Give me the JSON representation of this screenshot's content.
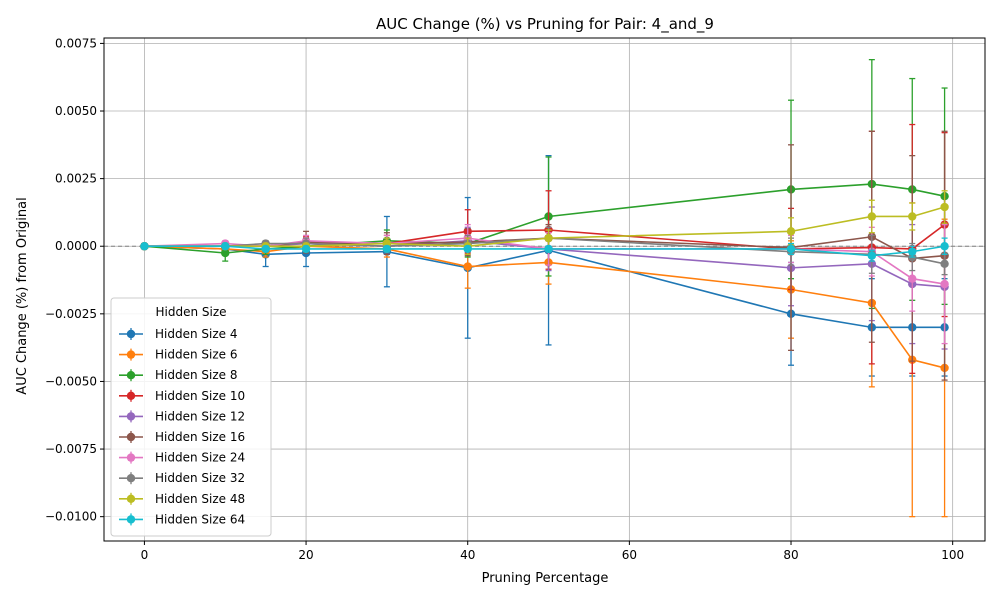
{
  "chart_data": {
    "type": "line",
    "title": "AUC Change (%) vs Pruning for Pair: 4_and_9",
    "xlabel": "Pruning Percentage",
    "ylabel": "AUC Change (%) from Original",
    "xlim": [
      -5,
      104
    ],
    "ylim": [
      -0.0109,
      0.0077
    ],
    "xticks": [
      0,
      20,
      40,
      60,
      80,
      100
    ],
    "xtick_labels": [
      "0",
      "20",
      "40",
      "60",
      "80",
      "100"
    ],
    "yticks": [
      -0.01,
      -0.0075,
      -0.005,
      -0.0025,
      0.0,
      0.0025,
      0.005,
      0.0075
    ],
    "ytick_labels": [
      "−0.0100",
      "−0.0075",
      "−0.0050",
      "−0.0025",
      "0.0000",
      "0.0025",
      "0.0050",
      "0.0075"
    ],
    "grid": true,
    "reference_line": 0.0,
    "legend_title": "Hidden Size",
    "legend_position": "lower-left",
    "x": [
      0,
      10,
      15,
      20,
      30,
      40,
      50,
      80,
      90,
      95,
      99
    ],
    "series": [
      {
        "name": "Hidden Size 4",
        "color": "#1f77b4",
        "values": [
          0.0,
          -0.0001,
          -0.0003,
          -0.00025,
          -0.0002,
          -0.0008,
          -0.00015,
          -0.0025,
          -0.003,
          -0.003,
          -0.003
        ],
        "errors": [
          0.0,
          0.0002,
          0.00045,
          0.0005,
          0.0013,
          0.0026,
          0.0035,
          0.0019,
          0.0018,
          0.0018,
          0.0018
        ]
      },
      {
        "name": "Hidden Size 6",
        "color": "#ff7f0e",
        "values": [
          0.0,
          -0.0001,
          -0.0002,
          0.0,
          -0.0001,
          -0.00075,
          -0.0006,
          -0.0016,
          -0.0021,
          -0.0042,
          -0.0045
        ],
        "errors": [
          0.0,
          0.0001,
          0.0002,
          0.0002,
          0.0003,
          0.0008,
          0.0008,
          0.0018,
          0.0031,
          0.0058,
          0.0055
        ]
      },
      {
        "name": "Hidden Size 8",
        "color": "#2ca02c",
        "values": [
          0.0,
          -0.00025,
          -0.0001,
          0.0,
          0.0002,
          0.0001,
          0.0011,
          0.0021,
          0.0023,
          0.0021,
          0.00185
        ],
        "errors": [
          0.0,
          0.0003,
          0.0002,
          0.0002,
          0.0004,
          0.0005,
          0.0022,
          0.0033,
          0.0046,
          0.0041,
          0.004
        ]
      },
      {
        "name": "Hidden Size 10",
        "color": "#d62728",
        "values": [
          0.0,
          0.0,
          0.0,
          0.00015,
          0.0001,
          0.00055,
          0.0006,
          -0.0001,
          -5e-05,
          -0.0001,
          0.0008
        ],
        "errors": [
          0.0,
          0.0001,
          0.0001,
          0.0002,
          0.0003,
          0.0008,
          0.00145,
          0.0015,
          0.0043,
          0.0046,
          0.0034
        ]
      },
      {
        "name": "Hidden Size 12",
        "color": "#9467bd",
        "values": [
          0.0,
          0.0,
          0.0,
          0.0001,
          0.0,
          0.0002,
          -0.0001,
          -0.0008,
          -0.00065,
          -0.0014,
          -0.0015
        ],
        "errors": [
          0.0,
          0.0001,
          0.0001,
          0.0002,
          0.0003,
          0.0005,
          0.0008,
          0.0014,
          0.0021,
          0.0022,
          0.0023
        ]
      },
      {
        "name": "Hidden Size 16",
        "color": "#8c564b",
        "values": [
          0.0,
          0.0,
          0.0,
          0.00015,
          0.0001,
          0.00015,
          0.0003,
          -5e-05,
          0.00035,
          -0.00045,
          -0.00035
        ],
        "errors": [
          0.0,
          0.0001,
          0.0001,
          0.0004,
          0.0004,
          0.0005,
          0.0005,
          0.0038,
          0.0039,
          0.0038,
          0.0046
        ]
      },
      {
        "name": "Hidden Size 24",
        "color": "#e377c2",
        "values": [
          0.0,
          0.0001,
          0.0,
          0.0002,
          0.0001,
          0.0003,
          -0.0001,
          -0.0001,
          -0.0002,
          -0.0012,
          -0.0014
        ],
        "errors": [
          0.0,
          0.0001,
          0.0001,
          0.0002,
          0.0003,
          0.0005,
          0.0006,
          0.0005,
          0.0009,
          0.0012,
          0.0022
        ]
      },
      {
        "name": "Hidden Size 32",
        "color": "#7f7f7f",
        "values": [
          0.0,
          0.0,
          0.0001,
          0.0001,
          0.0,
          0.0001,
          0.0003,
          -0.0002,
          -0.0003,
          -0.0004,
          -0.00065
        ],
        "errors": [
          0.0,
          0.0001,
          0.0001,
          0.0002,
          0.0002,
          0.0003,
          0.0004,
          0.0005,
          0.0007,
          0.0005,
          0.0004
        ]
      },
      {
        "name": "Hidden Size 48",
        "color": "#bcbd22",
        "values": [
          0.0,
          0.0,
          0.0,
          0.0,
          0.0001,
          0.0,
          0.0003,
          0.00055,
          0.0011,
          0.0011,
          0.00145
        ],
        "errors": [
          0.0,
          0.0001,
          0.0001,
          0.0001,
          0.0002,
          0.0003,
          0.0003,
          0.0005,
          0.0006,
          0.0005,
          0.0006
        ]
      },
      {
        "name": "Hidden Size 64",
        "color": "#17becf",
        "values": [
          0.0,
          0.0,
          -0.0001,
          -0.0001,
          -0.0001,
          -0.0001,
          -0.0001,
          -0.0001,
          -0.00035,
          -0.0002,
          0.0
        ],
        "errors": [
          0.0,
          0.0001,
          0.0001,
          0.0001,
          0.0001,
          0.0001,
          0.0001,
          0.0002,
          0.0002,
          0.0002,
          0.0003
        ]
      }
    ]
  }
}
